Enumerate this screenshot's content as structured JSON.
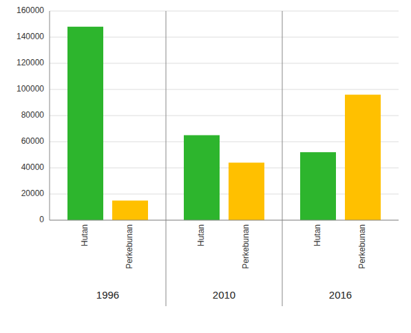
{
  "chart_data": {
    "type": "bar",
    "categories": [
      "1996",
      "2010",
      "2016"
    ],
    "series": [
      {
        "name": "Hutan",
        "color": "#2db52d",
        "values": [
          148000,
          65000,
          52000
        ]
      },
      {
        "name": "Perkebunan",
        "color": "#ffc000",
        "values": [
          15000,
          44000,
          96000
        ]
      }
    ],
    "ylim": [
      0,
      160000
    ],
    "yticks": [
      0,
      20000,
      40000,
      60000,
      80000,
      100000,
      120000,
      140000,
      160000
    ],
    "grid": true
  }
}
